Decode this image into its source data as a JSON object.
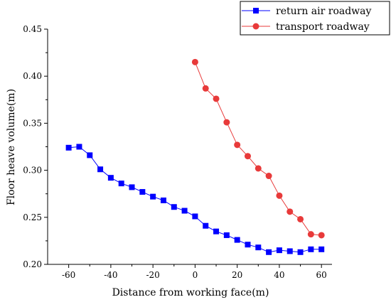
{
  "chart_data": {
    "type": "line",
    "title": "",
    "xlabel": "Distance from working face(m)",
    "ylabel": "Floor heave volume(m)",
    "xlim": [
      -70,
      65
    ],
    "ylim": [
      0.2,
      0.45
    ],
    "xticks": [
      -60,
      -40,
      -20,
      0,
      20,
      40,
      60
    ],
    "yticks": [
      0.2,
      0.25,
      0.3,
      0.35,
      0.4,
      0.45
    ],
    "xtick_labels": [
      "-60",
      "-40",
      "-20",
      "0",
      "20",
      "40",
      "60"
    ],
    "ytick_labels": [
      "0.20",
      "0.25",
      "0.30",
      "0.35",
      "0.40",
      "0.45"
    ],
    "grid": false,
    "legend_position": "top-right",
    "series": [
      {
        "name": "return air roadway",
        "color": "#0000ff",
        "marker": "square",
        "x": [
          -60,
          -55,
          -50,
          -45,
          -40,
          -35,
          -30,
          -25,
          -20,
          -15,
          -10,
          -5,
          0,
          5,
          10,
          15,
          20,
          25,
          30,
          35,
          40,
          45,
          50,
          55,
          60
        ],
        "y": [
          0.324,
          0.325,
          0.316,
          0.301,
          0.292,
          0.286,
          0.282,
          0.277,
          0.272,
          0.268,
          0.261,
          0.257,
          0.251,
          0.241,
          0.235,
          0.231,
          0.226,
          0.221,
          0.218,
          0.213,
          0.215,
          0.214,
          0.213,
          0.216,
          0.216
        ]
      },
      {
        "name": "transport roadway",
        "color": "#e83a3a",
        "marker": "circle",
        "x": [
          0,
          5,
          10,
          15,
          20,
          25,
          30,
          35,
          40,
          45,
          50,
          55,
          60
        ],
        "y": [
          0.415,
          0.387,
          0.376,
          0.351,
          0.327,
          0.315,
          0.302,
          0.294,
          0.273,
          0.256,
          0.248,
          0.232,
          0.231
        ]
      }
    ]
  }
}
